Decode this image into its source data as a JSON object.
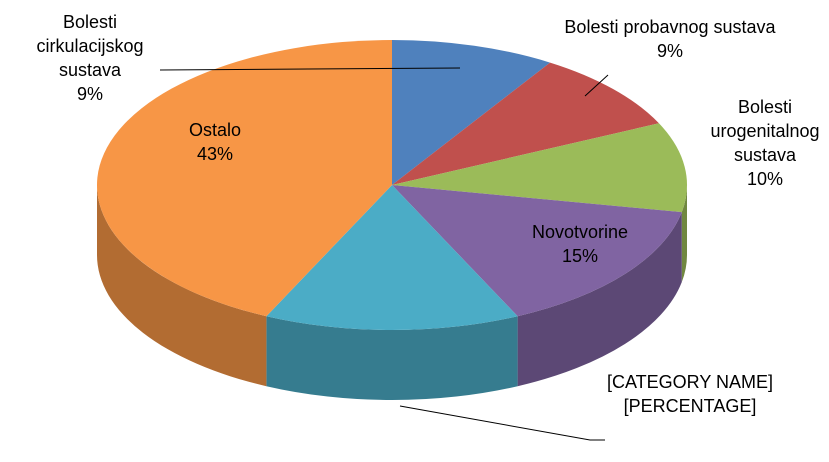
{
  "chart_data": {
    "type": "pie",
    "categories": [
      "Bolesti cirkulacijskog sustava",
      "Bolesti probavnog sustava",
      "Bolesti urogenitalnog sustava",
      "Novotvorine",
      "[CATEGORY NAME]",
      "Ostalo"
    ],
    "values": [
      9,
      9,
      10,
      15,
      14,
      43
    ],
    "value_labels": [
      "9%",
      "9%",
      "10%",
      "15%",
      "[PERCENTAGE]",
      "43%"
    ],
    "colors": [
      "#4f81bd",
      "#c0504d",
      "#9bbb59",
      "#8064a2",
      "#4bacc6",
      "#f79646"
    ],
    "three_d": true
  }
}
